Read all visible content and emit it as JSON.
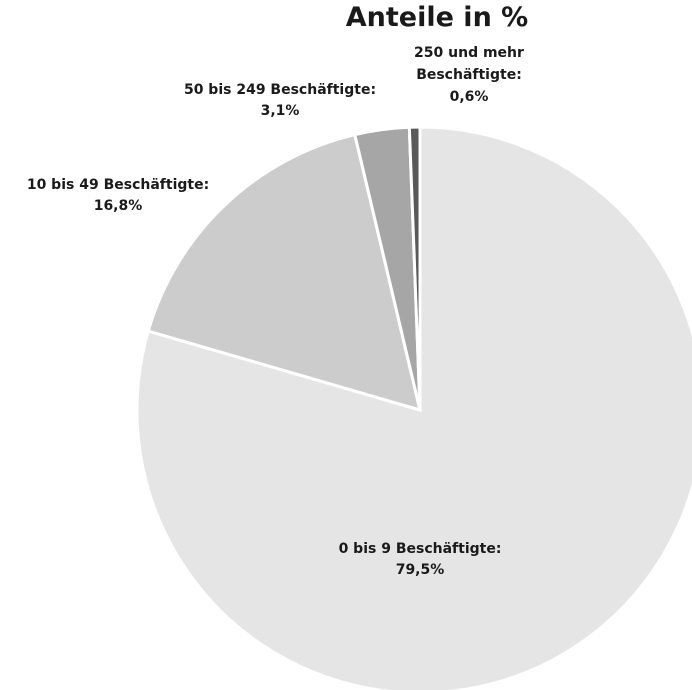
{
  "chart_data": {
    "type": "pie",
    "title": "Anteile in %",
    "slices": [
      {
        "label": "0 bis 9 Beschäftigte:",
        "value_label": "79,5%",
        "value": 79.5,
        "color": "#e5e5e5"
      },
      {
        "label": "10 bis 49 Beschäftigte:",
        "value_label": "16,8%",
        "value": 16.8,
        "color": "#cccccc"
      },
      {
        "label": "50 bis 249 Beschäftigte:",
        "value_label": "3,1%",
        "value": 3.1,
        "color": "#a6a6a6"
      },
      {
        "label_lines": [
          "250 und mehr",
          "Beschäftigte:"
        ],
        "value_label": "0,6%",
        "value": 0.6,
        "color": "#595959"
      }
    ]
  }
}
